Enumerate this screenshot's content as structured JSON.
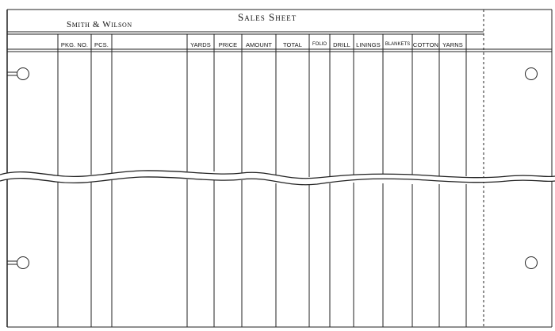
{
  "sheet": {
    "title": "Sales Sheet",
    "company": "Smith & Wilson",
    "columns": [
      "PKG. NO.",
      "PCS.",
      "YARDS",
      "PRICE",
      "AMOUNT",
      "TOTAL",
      "FOLIO",
      "DRILL",
      "LININGS",
      "BLANKETS",
      "COTTON",
      "YARNS"
    ]
  }
}
